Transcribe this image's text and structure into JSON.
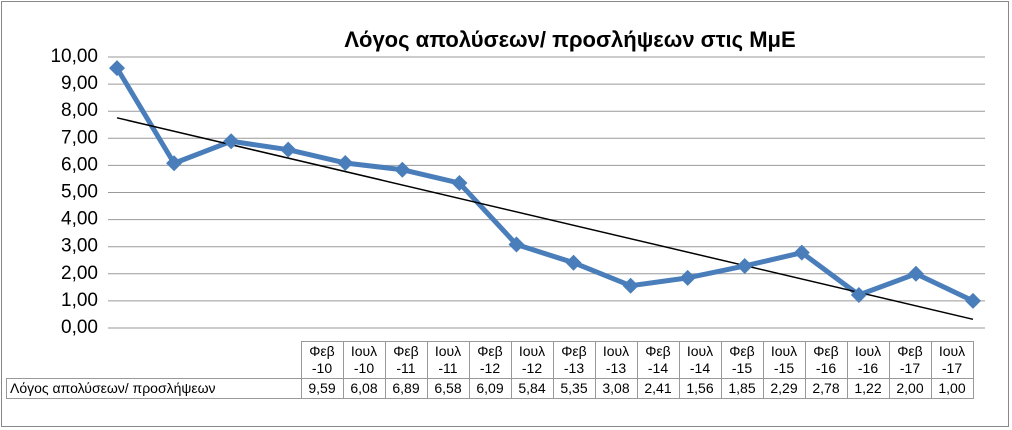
{
  "chart_data": {
    "type": "line",
    "title": "Λόγος απολύσεων/ προσλήψεων στις ΜμΕ",
    "categories": [
      "Φεβ -10",
      "Ιουλ -10",
      "Φεβ -11",
      "Ιουλ -11",
      "Φεβ -12",
      "Ιουλ -12",
      "Φεβ -13",
      "Ιουλ -13",
      "Φεβ -14",
      "Ιουλ -14",
      "Φεβ -15",
      "Ιουλ -15",
      "Φεβ -16",
      "Ιουλ -16",
      "Φεβ -17",
      "Ιουλ -17"
    ],
    "series": [
      {
        "name": "Λόγος απολύσεων/ προσλήψεων",
        "color": "#4a7ebb",
        "values": [
          9.59,
          6.08,
          6.89,
          6.58,
          6.09,
          5.84,
          5.35,
          3.08,
          2.41,
          1.56,
          1.85,
          2.29,
          2.78,
          1.22,
          2.0,
          1.0
        ],
        "value_labels": [
          "9,59",
          "6,08",
          "6,89",
          "6,58",
          "6,09",
          "5,84",
          "5,35",
          "3,08",
          "2,41",
          "1,56",
          "1,85",
          "2,29",
          "2,78",
          "1,22",
          "2,00",
          "1,00"
        ]
      }
    ],
    "ylim": [
      0,
      10
    ],
    "yticks": [
      {
        "value": 0,
        "label": "0,00"
      },
      {
        "value": 1,
        "label": "1,00"
      },
      {
        "value": 2,
        "label": "2,00"
      },
      {
        "value": 3,
        "label": "3,00"
      },
      {
        "value": 4,
        "label": "4,00"
      },
      {
        "value": 5,
        "label": "5,00"
      },
      {
        "value": 6,
        "label": "6,00"
      },
      {
        "value": 7,
        "label": "7,00"
      },
      {
        "value": 8,
        "label": "8,00"
      },
      {
        "value": 9,
        "label": "9,00"
      },
      {
        "value": 10,
        "label": "10,00"
      }
    ],
    "grid": true,
    "trendline": true,
    "trendline_color": "#000000",
    "data_table": true
  }
}
